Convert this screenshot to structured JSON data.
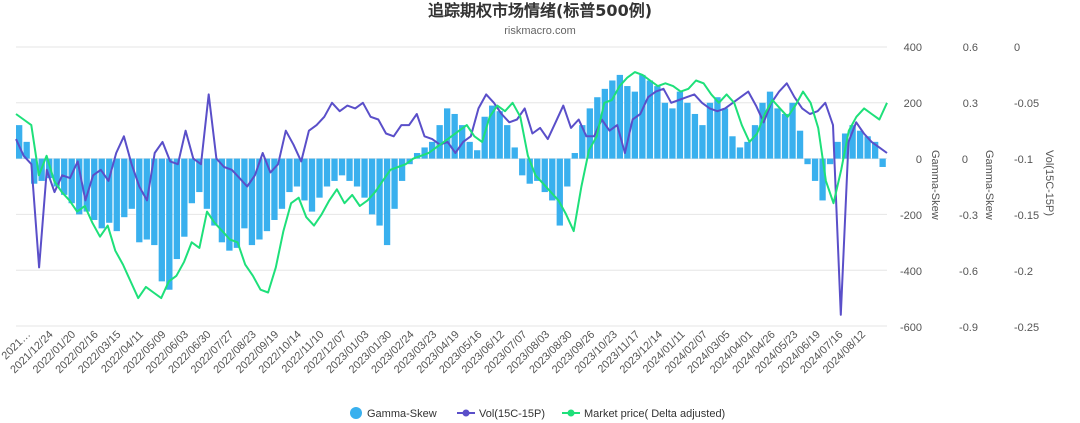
{
  "chart_data": {
    "type": "line",
    "title": "追踪期权市场情绪(标普500例)",
    "subtitle": "riskmacro.com",
    "x_labels": [
      "2021…",
      "2021/12/24",
      "2022/01/20",
      "2022/02/16",
      "2022/03/15",
      "2022/04/11",
      "2022/05/09",
      "2022/06/03",
      "2022/06/30",
      "2022/07/27",
      "2022/08/23",
      "2022/09/19",
      "2022/10/14",
      "2022/11/10",
      "2022/12/07",
      "2023/01/03",
      "2023/01/30",
      "2023/02/24",
      "2023/03/23",
      "2023/04/19",
      "2023/05/16",
      "2023/06/12",
      "2023/07/07",
      "2023/08/03",
      "2023/08/30",
      "2023/09/26",
      "2023/10/23",
      "2023/11/17",
      "2023/12/14",
      "2024/01/11",
      "2024/02/07",
      "2024/03/05",
      "2024/04/01",
      "2024/04/26",
      "2024/05/23",
      "2024/06/19",
      "2024/07/16",
      "2024/08/12"
    ],
    "axes": {
      "left": {
        "title": "Gamma-Skew",
        "range": [
          -600,
          400
        ],
        "ticks": [
          "400",
          "200",
          "0",
          "-200",
          "-400",
          "-600"
        ]
      },
      "right1": {
        "title": "Gamma-Skew",
        "range": [
          -0.9,
          0.6
        ],
        "ticks": [
          "0.6",
          "0.3",
          "0",
          "-0.3",
          "-0.6",
          "-0.9"
        ]
      },
      "right2": {
        "title": "Vol(15C-15P)",
        "range": [
          -0.25,
          0
        ],
        "ticks": [
          "0",
          "-0.05",
          "-0.1",
          "-0.15",
          "-0.2",
          "-0.25"
        ]
      }
    },
    "series": [
      {
        "name": "Gamma-Skew",
        "type": "bar",
        "axis": "left",
        "color": "#39b0ee",
        "values": [
          120,
          60,
          -90,
          -80,
          -70,
          -100,
          -130,
          -160,
          -200,
          -190,
          -220,
          -250,
          -230,
          -260,
          -210,
          -180,
          -300,
          -290,
          -310,
          -440,
          -470,
          -360,
          -280,
          -160,
          -120,
          -180,
          -240,
          -300,
          -330,
          -320,
          -250,
          -310,
          -290,
          -260,
          -220,
          -180,
          -120,
          -100,
          -150,
          -190,
          -140,
          -100,
          -80,
          -60,
          -80,
          -100,
          -140,
          -200,
          -240,
          -310,
          -180,
          -80,
          -20,
          20,
          40,
          60,
          120,
          180,
          160,
          120,
          60,
          30,
          150,
          190,
          170,
          120,
          40,
          -60,
          -90,
          -80,
          -120,
          -150,
          -240,
          -100,
          20,
          120,
          180,
          220,
          250,
          280,
          300,
          260,
          240,
          300,
          280,
          260,
          200,
          180,
          240,
          200,
          160,
          120,
          200,
          220,
          180,
          80,
          40,
          60,
          120,
          200,
          240,
          180,
          160,
          200,
          100,
          -20,
          -80,
          -150,
          -20,
          60,
          90,
          120,
          100,
          80,
          60,
          -30
        ]
      },
      {
        "name": "Vol(15C-15P)",
        "type": "line",
        "axis": "left",
        "color": "#5a4fc9",
        "values": [
          70,
          10,
          -20,
          -390,
          -40,
          -120,
          -60,
          -70,
          -10,
          -150,
          -60,
          -40,
          -80,
          20,
          80,
          -20,
          -100,
          -150,
          20,
          60,
          -10,
          -20,
          100,
          0,
          -20,
          230,
          0,
          -30,
          -40,
          -70,
          -100,
          -60,
          20,
          -50,
          -20,
          100,
          50,
          -10,
          100,
          120,
          150,
          200,
          170,
          190,
          180,
          200,
          150,
          140,
          90,
          80,
          120,
          120,
          160,
          80,
          70,
          50,
          60,
          20,
          60,
          80,
          180,
          230,
          200,
          160,
          130,
          140,
          180,
          90,
          110,
          70,
          130,
          190,
          110,
          140,
          80,
          80,
          140,
          100,
          120,
          20,
          140,
          160,
          220,
          240,
          250,
          200,
          210,
          220,
          230,
          200,
          180,
          170,
          180,
          200,
          220,
          240,
          190,
          130,
          200,
          240,
          270,
          220,
          180,
          160,
          170,
          200,
          120,
          -560,
          60,
          130,
          90,
          60,
          40,
          20
        ]
      },
      {
        "name": "Market price( Delta adjusted)",
        "type": "line",
        "axis": "left",
        "color": "#1ee07a",
        "values": [
          160,
          140,
          120,
          -60,
          10,
          -80,
          -120,
          -150,
          -190,
          -170,
          -230,
          -280,
          -240,
          -330,
          -380,
          -440,
          -500,
          -460,
          -480,
          -500,
          -440,
          -420,
          -370,
          -300,
          -320,
          -190,
          -230,
          -260,
          -290,
          -300,
          -380,
          -420,
          -470,
          -480,
          -390,
          -260,
          -160,
          -140,
          -210,
          -240,
          -200,
          -150,
          -110,
          -160,
          -130,
          -170,
          -150,
          -120,
          -80,
          -40,
          -30,
          -20,
          0,
          10,
          20,
          40,
          60,
          80,
          100,
          120,
          80,
          60,
          150,
          190,
          170,
          200,
          150,
          10,
          -60,
          -90,
          -120,
          -150,
          -200,
          -260,
          -100,
          30,
          80,
          200,
          210,
          260,
          290,
          310,
          300,
          280,
          260,
          270,
          260,
          240,
          250,
          280,
          270,
          230,
          200,
          230,
          200,
          120,
          60,
          90,
          160,
          210,
          180,
          150,
          190,
          240,
          200,
          110,
          -80,
          -160,
          -40,
          100,
          150,
          180,
          160,
          140,
          200
        ]
      }
    ],
    "legend": {
      "position": "bottom",
      "entries": [
        "Gamma-Skew",
        "Vol(15C-15P)",
        "Market price( Delta adjusted)"
      ]
    }
  }
}
